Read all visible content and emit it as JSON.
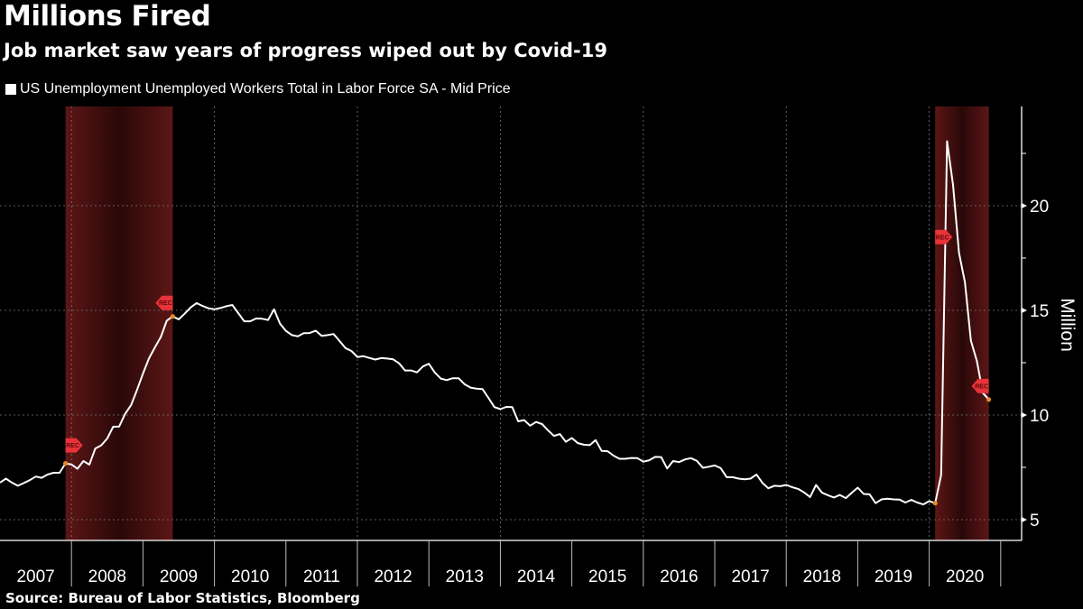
{
  "header": {
    "title": "Millions Fired",
    "subtitle": "Job market saw years of progress wiped out by Covid-19"
  },
  "legend": {
    "label": "US Unemployment Unemployed Workers Total in Labor Force SA - Mid Price",
    "color": "#ffffff"
  },
  "footer": {
    "source": "Source: Bureau of Labor Statistics, Bloomberg"
  },
  "colors": {
    "background": "#000000",
    "line": "#ffffff",
    "recession_edge": "#5c1616",
    "recession_center": "#2a0808",
    "rec_marker": "#e8333a",
    "endpoint_dot": "#e08a2a",
    "grid": "#777777"
  },
  "chart_data": {
    "type": "line",
    "title": "Millions Fired",
    "subtitle": "Job market saw years of progress wiped out by Covid-19",
    "xlabel": "",
    "ylabel": "Million",
    "x_start": "2007-01",
    "x_frequency": "monthly",
    "xlim": [
      "2007-01",
      "2021-03"
    ],
    "ylim": [
      4.0,
      25.0
    ],
    "y_ticks": [
      5,
      10,
      15,
      20
    ],
    "y_minor_ticks": [
      7.5,
      12.5,
      17.5,
      22.5
    ],
    "x_tick_labels": [
      "2007",
      "2008",
      "2009",
      "2010",
      "2011",
      "2012",
      "2013",
      "2014",
      "2015",
      "2016",
      "2017",
      "2018",
      "2019",
      "2020"
    ],
    "x_gridlines_years": [
      2008,
      2010,
      2012,
      2014,
      2016,
      2018,
      2020
    ],
    "grid": true,
    "legend_position": "top-left",
    "y_axis_position": "right",
    "recessions": [
      {
        "start": "2007-12",
        "end": "2009-06",
        "label": "REC"
      },
      {
        "start": "2020-02",
        "end": "2020-11",
        "label": "REC"
      }
    ],
    "series": [
      {
        "name": "US Unemployment Unemployed Workers Total in Labor Force SA - Mid Price",
        "values": [
          6.77,
          6.96,
          6.77,
          6.62,
          6.75,
          6.89,
          7.06,
          7.0,
          7.16,
          7.24,
          7.24,
          7.69,
          7.64,
          7.43,
          7.8,
          7.63,
          8.4,
          8.55,
          8.88,
          9.44,
          9.45,
          10.05,
          10.47,
          11.2,
          11.98,
          12.7,
          13.23,
          13.73,
          14.51,
          14.71,
          14.57,
          14.84,
          15.14,
          15.35,
          15.21,
          15.1,
          15.05,
          15.11,
          15.2,
          15.26,
          14.87,
          14.48,
          14.48,
          14.61,
          14.6,
          14.54,
          15.05,
          14.37,
          14.02,
          13.82,
          13.76,
          13.91,
          13.92,
          14.03,
          13.78,
          13.82,
          13.87,
          13.54,
          13.2,
          13.06,
          12.77,
          12.81,
          12.73,
          12.65,
          12.72,
          12.7,
          12.66,
          12.47,
          12.13,
          12.13,
          12.04,
          12.32,
          12.45,
          12.03,
          11.74,
          11.67,
          11.76,
          11.76,
          11.47,
          11.31,
          11.26,
          11.24,
          10.82,
          10.38,
          10.28,
          10.39,
          10.38,
          9.7,
          9.76,
          9.49,
          9.67,
          9.57,
          9.27,
          9.0,
          9.09,
          8.72,
          8.9,
          8.66,
          8.58,
          8.56,
          8.8,
          8.29,
          8.27,
          8.06,
          7.91,
          7.91,
          7.95,
          7.94,
          7.77,
          7.84,
          8.0,
          7.99,
          7.45,
          7.8,
          7.75,
          7.88,
          7.94,
          7.81,
          7.48,
          7.53,
          7.59,
          7.46,
          7.03,
          7.03,
          6.96,
          6.93,
          6.96,
          7.16,
          6.76,
          6.5,
          6.62,
          6.6,
          6.66,
          6.55,
          6.47,
          6.3,
          6.08,
          6.66,
          6.29,
          6.17,
          6.06,
          6.18,
          6.03,
          6.29,
          6.53,
          6.23,
          6.21,
          5.79,
          5.97,
          6.0,
          5.97,
          5.96,
          5.82,
          5.95,
          5.82,
          5.73,
          5.89,
          5.79,
          7.14,
          23.08,
          20.99,
          17.75,
          16.34,
          13.55,
          12.58,
          11.06,
          10.74
        ]
      }
    ]
  }
}
